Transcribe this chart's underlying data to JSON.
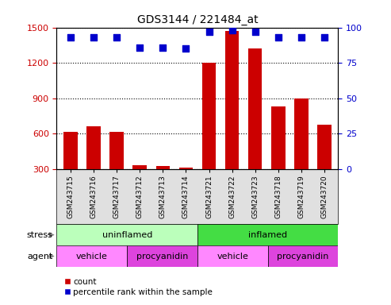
{
  "title": "GDS3144 / 221484_at",
  "samples": [
    "GSM243715",
    "GSM243716",
    "GSM243717",
    "GSM243712",
    "GSM243713",
    "GSM243714",
    "GSM243721",
    "GSM243722",
    "GSM243723",
    "GSM243718",
    "GSM243719",
    "GSM243720"
  ],
  "counts": [
    620,
    665,
    620,
    335,
    330,
    315,
    1200,
    1470,
    1320,
    830,
    900,
    680
  ],
  "percentiles": [
    93,
    93,
    93,
    86,
    86,
    85,
    97,
    98,
    97,
    93,
    93,
    93
  ],
  "ylim_left": [
    300,
    1500
  ],
  "ylim_right": [
    0,
    100
  ],
  "yticks_left": [
    300,
    600,
    900,
    1200,
    1500
  ],
  "yticks_right": [
    0,
    25,
    50,
    75,
    100
  ],
  "bar_color": "#cc0000",
  "dot_color": "#0000cc",
  "stress_groups": [
    {
      "label": "uninflamed",
      "start": 0,
      "end": 6,
      "color": "#bbffbb"
    },
    {
      "label": "inflamed",
      "start": 6,
      "end": 12,
      "color": "#44dd44"
    }
  ],
  "agent_groups": [
    {
      "label": "vehicle",
      "start": 0,
      "end": 3,
      "color": "#ff88ff"
    },
    {
      "label": "procyanidin",
      "start": 3,
      "end": 6,
      "color": "#dd44dd"
    },
    {
      "label": "vehicle",
      "start": 6,
      "end": 9,
      "color": "#ff88ff"
    },
    {
      "label": "procyanidin",
      "start": 9,
      "end": 12,
      "color": "#dd44dd"
    }
  ],
  "legend_items": [
    {
      "label": "count",
      "color": "#cc0000"
    },
    {
      "label": "percentile rank within the sample",
      "color": "#0000cc"
    }
  ],
  "background_color": "#ffffff",
  "tick_label_color_left": "#cc0000",
  "tick_label_color_right": "#0000cc",
  "xticklabel_bg": "#e0e0e0"
}
